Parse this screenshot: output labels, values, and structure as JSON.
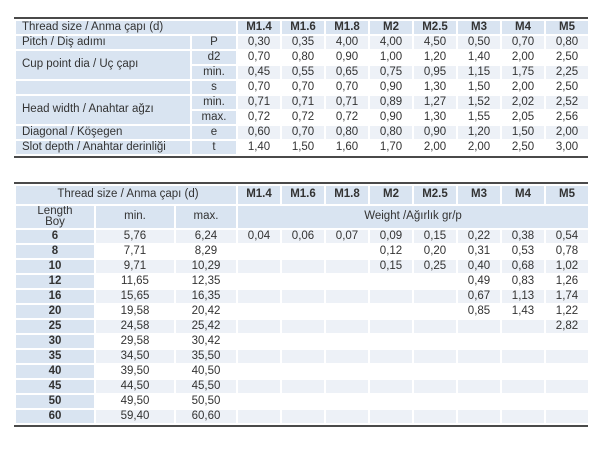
{
  "colors": {
    "header_blue": "#d9e4f1",
    "stripe": "#edf1f7",
    "rule_dark": "#4a4a4a",
    "text": "#333333"
  },
  "sizes": [
    "M1.4",
    "M1.6",
    "M1.8",
    "M2",
    "M2.5",
    "M3",
    "M4",
    "M5"
  ],
  "spec_table": {
    "header_label": "Thread size / Anma çapı (d)",
    "rows": [
      {
        "label": "Pitch / Diş adımı",
        "rowspan": 1,
        "symbol": "P",
        "striped": true,
        "values": [
          "0,30",
          "0,35",
          "4,00",
          "4,00",
          "4,50",
          "0,50",
          "0,70",
          "0,80"
        ]
      },
      {
        "label": "Cup point dia / Uç çapı",
        "rowspan": 2,
        "symbol": "d2",
        "striped": false,
        "values": [
          "0,70",
          "0,80",
          "0,90",
          "1,00",
          "1,20",
          "1,40",
          "2,00",
          "2,50"
        ]
      },
      {
        "symbol": "min.",
        "striped": true,
        "values": [
          "0,45",
          "0,55",
          "0,65",
          "0,75",
          "0,95",
          "1,15",
          "1,75",
          "2,25"
        ]
      },
      {
        "label": "",
        "rowspan": 1,
        "symbol": "s",
        "striped": false,
        "values": [
          "0,70",
          "0,70",
          "0,70",
          "0,90",
          "1,30",
          "1,50",
          "2,00",
          "2,50"
        ]
      },
      {
        "label": "Head width / Anahtar ağzı",
        "rowspan": 2,
        "symbol": "min.",
        "striped": true,
        "values": [
          "0,71",
          "0,71",
          "0,71",
          "0,89",
          "1,27",
          "1,52",
          "2,02",
          "2,52"
        ]
      },
      {
        "symbol": "max.",
        "striped": false,
        "values": [
          "0,72",
          "0,72",
          "0,72",
          "0,90",
          "1,30",
          "1,55",
          "2,05",
          "2,56"
        ]
      },
      {
        "label": "Diagonal / Köşegen",
        "rowspan": 1,
        "symbol": "e",
        "striped": true,
        "values": [
          "0,60",
          "0,70",
          "0,80",
          "0,80",
          "0,90",
          "1,20",
          "1,50",
          "2,00"
        ]
      },
      {
        "label": "Slot depth / Anahtar derinliği",
        "rowspan": 1,
        "symbol": "t",
        "striped": false,
        "values": [
          "1,40",
          "1,50",
          "1,60",
          "1,70",
          "2,00",
          "2,00",
          "2,50",
          "3,00"
        ]
      }
    ]
  },
  "length_table": {
    "header_label": "Thread size / Anma çapı (d)",
    "length_label_line1": "Length",
    "length_label_line2": "Boy",
    "min_label": "min.",
    "max_label": "max.",
    "weight_label": "Weight /Ağırlık gr/p",
    "rows": [
      {
        "length": "6",
        "min": "5,76",
        "max": "6,24",
        "weights": [
          "0,04",
          "0,06",
          "0,07",
          "0,09",
          "0,15",
          "0,22",
          "0,38",
          "0,54"
        ]
      },
      {
        "length": "8",
        "min": "7,71",
        "max": "8,29",
        "weights": [
          "",
          "",
          "",
          "0,12",
          "0,20",
          "0,31",
          "0,53",
          "0,78"
        ]
      },
      {
        "length": "10",
        "min": "9,71",
        "max": "10,29",
        "weights": [
          "",
          "",
          "",
          "0,15",
          "0,25",
          "0,40",
          "0,68",
          "1,02"
        ]
      },
      {
        "length": "12",
        "min": "11,65",
        "max": "12,35",
        "weights": [
          "",
          "",
          "",
          "",
          "",
          "0,49",
          "0,83",
          "1,26"
        ]
      },
      {
        "length": "16",
        "min": "15,65",
        "max": "16,35",
        "weights": [
          "",
          "",
          "",
          "",
          "",
          "0,67",
          "1,13",
          "1,74"
        ]
      },
      {
        "length": "20",
        "min": "19,58",
        "max": "20,42",
        "weights": [
          "",
          "",
          "",
          "",
          "",
          "0,85",
          "1,43",
          "1,22"
        ]
      },
      {
        "length": "25",
        "min": "24,58",
        "max": "25,42",
        "weights": [
          "",
          "",
          "",
          "",
          "",
          "",
          "",
          "2,82"
        ]
      },
      {
        "length": "30",
        "min": "29,58",
        "max": "30,42",
        "weights": [
          "",
          "",
          "",
          "",
          "",
          "",
          "",
          ""
        ]
      },
      {
        "length": "35",
        "min": "34,50",
        "max": "35,50",
        "weights": [
          "",
          "",
          "",
          "",
          "",
          "",
          "",
          ""
        ]
      },
      {
        "length": "40",
        "min": "39,50",
        "max": "40,50",
        "weights": [
          "",
          "",
          "",
          "",
          "",
          "",
          "",
          ""
        ]
      },
      {
        "length": "45",
        "min": "44,50",
        "max": "45,50",
        "weights": [
          "",
          "",
          "",
          "",
          "",
          "",
          "",
          ""
        ]
      },
      {
        "length": "50",
        "min": "49,50",
        "max": "50,50",
        "weights": [
          "",
          "",
          "",
          "",
          "",
          "",
          "",
          ""
        ]
      },
      {
        "length": "60",
        "min": "59,40",
        "max": "60,60",
        "weights": [
          "",
          "",
          "",
          "",
          "",
          "",
          "",
          ""
        ]
      }
    ]
  }
}
